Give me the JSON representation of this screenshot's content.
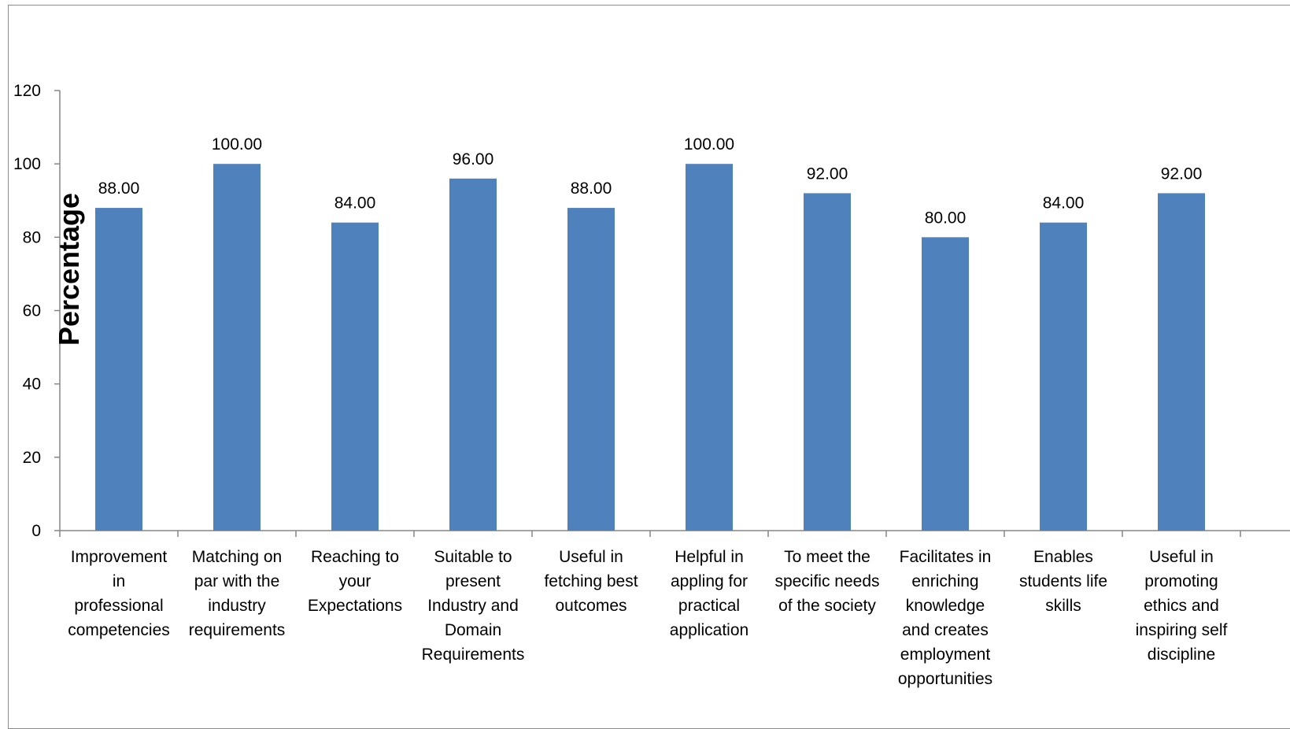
{
  "chart_data": {
    "type": "bar",
    "ylabel": "Percentage",
    "xlabel": "",
    "title": "",
    "ylim": [
      0,
      120
    ],
    "yticks": [
      0,
      20,
      40,
      60,
      80,
      100,
      120
    ],
    "bar_color": "#4F81BD",
    "axis_color": "#868686",
    "categories": [
      [
        "Improvement",
        "in",
        "professional",
        "competencies"
      ],
      [
        "Matching on",
        "par with the",
        "industry",
        "requirements"
      ],
      [
        "Reaching to",
        "your",
        "Expectations"
      ],
      [
        "Suitable to",
        "present",
        "Industry and",
        "Domain",
        "Requirements"
      ],
      [
        "Useful in",
        "fetching best",
        "outcomes"
      ],
      [
        "Helpful in",
        "appling for",
        "practical",
        "application"
      ],
      [
        "To meet the",
        "specific needs",
        "of the society"
      ],
      [
        "Facilitates in",
        "enriching",
        "knowledge",
        "and creates",
        "employment",
        "opportunities"
      ],
      [
        "Enables",
        "students life",
        "skills"
      ],
      [
        "Useful in",
        "promoting",
        "ethics and",
        "inspiring self",
        "discipline"
      ]
    ],
    "values": [
      88,
      100,
      84,
      96,
      88,
      100,
      92,
      80,
      84,
      92
    ],
    "data_labels": [
      "88.00",
      "100.00",
      "84.00",
      "96.00",
      "88.00",
      "100.00",
      "92.00",
      "80.00",
      "84.00",
      "92.00"
    ]
  }
}
